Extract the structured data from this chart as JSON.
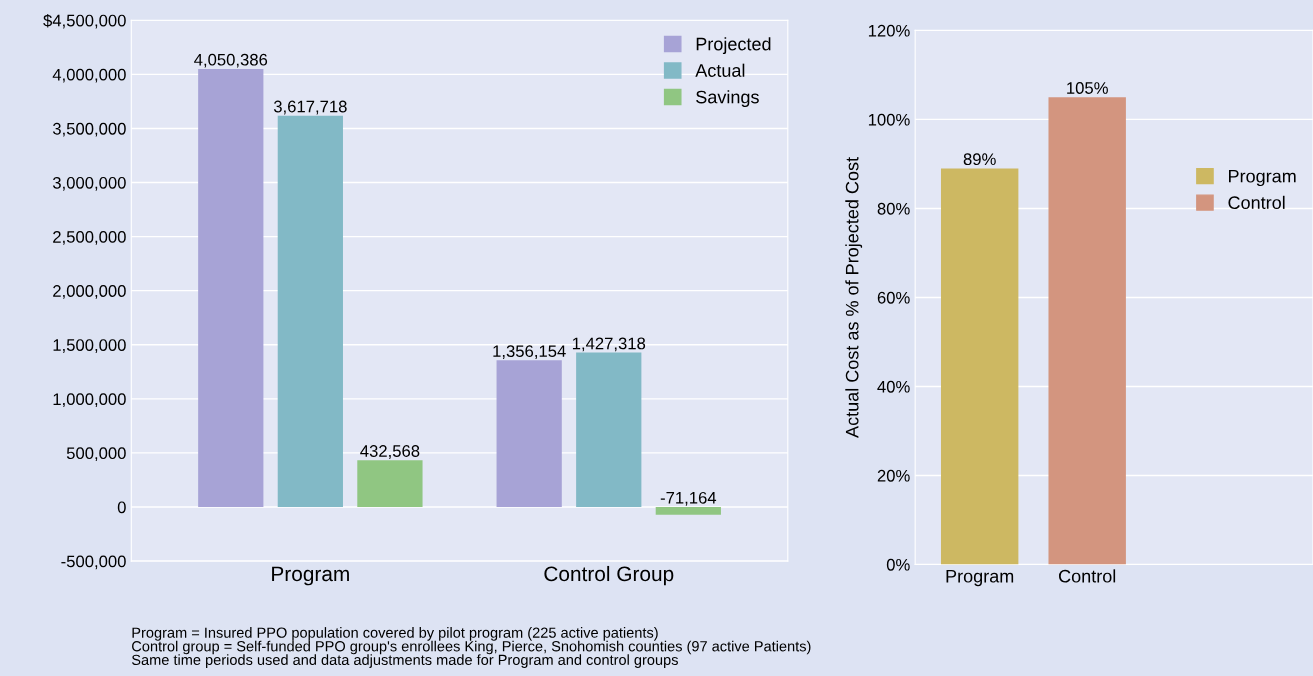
{
  "chart_data": [
    {
      "type": "bar",
      "categories": [
        "Program",
        "Control Group"
      ],
      "series": [
        {
          "name": "Projected",
          "color": "#a7a3d6",
          "values": [
            4050386,
            1356154
          ],
          "value_labels": [
            "4,050,386",
            "1,356,154"
          ]
        },
        {
          "name": "Actual",
          "color": "#82b9c6",
          "values": [
            3617718,
            1427318
          ],
          "value_labels": [
            "3,617,718",
            "1,427,318"
          ]
        },
        {
          "name": "Savings",
          "color": "#90c682",
          "values": [
            432568,
            -71164
          ],
          "value_labels": [
            "432,568",
            "-71,164"
          ]
        }
      ],
      "ylim": [
        -500000,
        4500000
      ],
      "yticks": [
        {
          "value": -500000,
          "label": "-500,000"
        },
        {
          "value": 0,
          "label": "0"
        },
        {
          "value": 500000,
          "label": "500,000"
        },
        {
          "value": 1000000,
          "label": "1,000,000"
        },
        {
          "value": 1500000,
          "label": "1,500,000"
        },
        {
          "value": 2000000,
          "label": "2,000,000"
        },
        {
          "value": 2500000,
          "label": "2,500,000"
        },
        {
          "value": 3000000,
          "label": "3,000,000"
        },
        {
          "value": 3500000,
          "label": "3,500,000"
        },
        {
          "value": 4000000,
          "label": "4,000,000"
        },
        {
          "value": 4500000,
          "label": "$4,500,000"
        }
      ],
      "grid": "y",
      "legend": "top right",
      "annotations": [
        "Program = Insured PPO population covered by pilot program (225 active patients)\nControl group = Self-funded PPO group's enrollees King, Pierce, Snohomish counties (97 active Patients)\nSame time periods used and data adjustments made for Program and control groups"
      ]
    },
    {
      "type": "bar",
      "categories": [
        "Program",
        "Control"
      ],
      "stacked": true,
      "series": [
        {
          "name": "Program",
          "color": "#cdb862",
          "values": [
            89,
            null
          ],
          "value_labels": [
            "89%",
            null
          ]
        },
        {
          "name": "Control",
          "color": "#d3957f",
          "values": [
            null,
            105
          ],
          "value_labels": [
            null,
            "105%"
          ]
        }
      ],
      "ylabel": "Actual Cost as % of Projected Cost",
      "ylim": [
        0,
        120
      ],
      "yticks": [
        {
          "value": 0,
          "label": "0%"
        },
        {
          "value": 20,
          "label": "20%"
        },
        {
          "value": 40,
          "label": "40%"
        },
        {
          "value": 60,
          "label": "60%"
        },
        {
          "value": 80,
          "label": "80%"
        },
        {
          "value": 100,
          "label": "100%"
        },
        {
          "value": 120,
          "label": "120%"
        }
      ],
      "grid": "y",
      "legend": "right"
    }
  ]
}
